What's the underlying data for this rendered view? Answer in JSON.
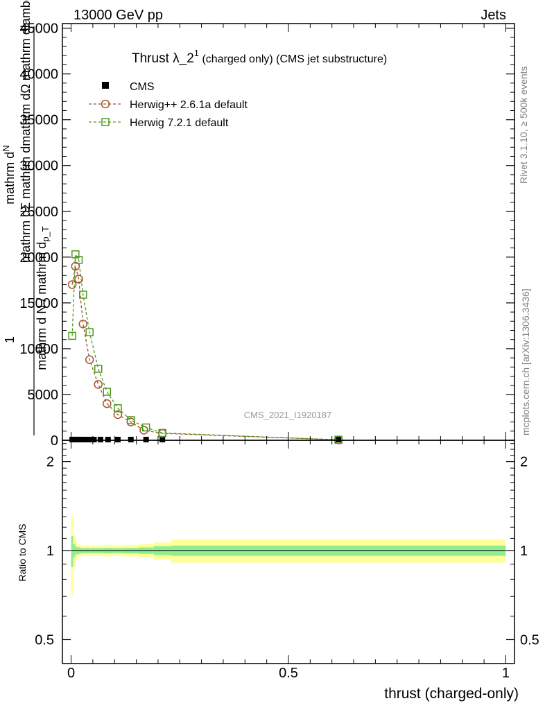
{
  "header": {
    "left": "13000 GeV pp",
    "right": "Jets"
  },
  "side_text": {
    "rivet": "Rivet 3.1.10, ≥ 500k events",
    "mcplots": "mcplots.cern.ch [arXiv:1306.3436]"
  },
  "watermark": "CMS_2021_I1920187",
  "title": {
    "main": "Thrust λ_2",
    "sup": "1",
    "rest": " (charged only) (CMS jet substructure)"
  },
  "ylabel_main": {
    "num_1": "mathrm d",
    "num_2": "N",
    "num_3": "mathrm dΣ mathrm d",
    "num_4": "mathrm dΩ mathrm dlambda",
    "one": "1",
    "den_1": "mathrm d N / mathrm d",
    "den_2": "p_T"
  },
  "ylabel_ratio": "Ratio to CMS",
  "xlabel": "thrust (charged-only)",
  "colors": {
    "data": "#000000",
    "herwig_pp": "#a0522d",
    "herwig_7": "#4a9a1a",
    "band_inner": "#90ee90",
    "band_outer": "#ffff99",
    "side_text": "#808080"
  },
  "chart_data": [
    {
      "type": "line",
      "panel": "main",
      "xlim": [
        -0.02,
        1.02
      ],
      "ylim": [
        0,
        45500
      ],
      "y_ticks": [
        0,
        5000,
        10000,
        15000,
        20000,
        25000,
        30000,
        35000,
        40000,
        45000
      ],
      "y_tick_labels": [
        "0",
        "5000",
        "10000",
        "15000",
        "20000",
        "25000",
        "30000",
        "35000",
        "40000",
        "45000"
      ],
      "legend_position": "top-left",
      "series": [
        {
          "name": "CMS",
          "marker": "filled-square",
          "x": [
            0.0025,
            0.0075,
            0.0125,
            0.0175,
            0.0225,
            0.03,
            0.04,
            0.0525,
            0.0675,
            0.085,
            0.1075,
            0.1375,
            0.1725,
            0.21,
            0.615
          ],
          "y": [
            80,
            80,
            80,
            80,
            80,
            80,
            80,
            80,
            80,
            80,
            80,
            80,
            80,
            80,
            80
          ]
        },
        {
          "name": "Herwig++ 2.6.1a default",
          "marker": "open-circle",
          "x": [
            0.0025,
            0.01,
            0.0175,
            0.0275,
            0.0425,
            0.0625,
            0.0825,
            0.1075,
            0.1375,
            0.1675,
            0.21,
            0.615
          ],
          "y": [
            17000,
            19000,
            17600,
            12700,
            8800,
            6100,
            4000,
            2800,
            2000,
            1100,
            750,
            50
          ]
        },
        {
          "name": "Herwig 7.2.1 default",
          "marker": "open-square",
          "x": [
            0.0025,
            0.01,
            0.0175,
            0.0275,
            0.0425,
            0.0625,
            0.0825,
            0.1075,
            0.1375,
            0.1725,
            0.21,
            0.615
          ],
          "y": [
            11400,
            20300,
            19700,
            15900,
            11800,
            7800,
            5300,
            3500,
            2200,
            1400,
            800,
            50
          ]
        }
      ]
    },
    {
      "type": "area",
      "panel": "ratio",
      "xlim": [
        -0.02,
        1.02
      ],
      "ylim": [
        0.415,
        2.36
      ],
      "y_scale": "log",
      "y_ticks": [
        0.5,
        1,
        2
      ],
      "y_tick_labels": [
        "0.5",
        "1",
        "2"
      ],
      "x_ticks": [
        0,
        0.5,
        1
      ],
      "x_tick_labels": [
        "0",
        "0.5",
        "1"
      ],
      "reference": 1,
      "bin_edges": [
        0,
        0.005,
        0.01,
        0.015,
        0.02,
        0.025,
        0.035,
        0.045,
        0.06,
        0.075,
        0.095,
        0.12,
        0.155,
        0.19,
        0.23,
        1.0
      ],
      "inner_half_width": [
        0.12,
        0.05,
        0.03,
        0.025,
        0.022,
        0.02,
        0.02,
        0.02,
        0.02,
        0.022,
        0.02,
        0.022,
        0.025,
        0.035,
        0.04
      ],
      "outer_half_width": [
        0.3,
        0.12,
        0.07,
        0.05,
        0.045,
        0.04,
        0.04,
        0.04,
        0.04,
        0.045,
        0.04,
        0.045,
        0.05,
        0.065,
        0.09
      ]
    }
  ]
}
